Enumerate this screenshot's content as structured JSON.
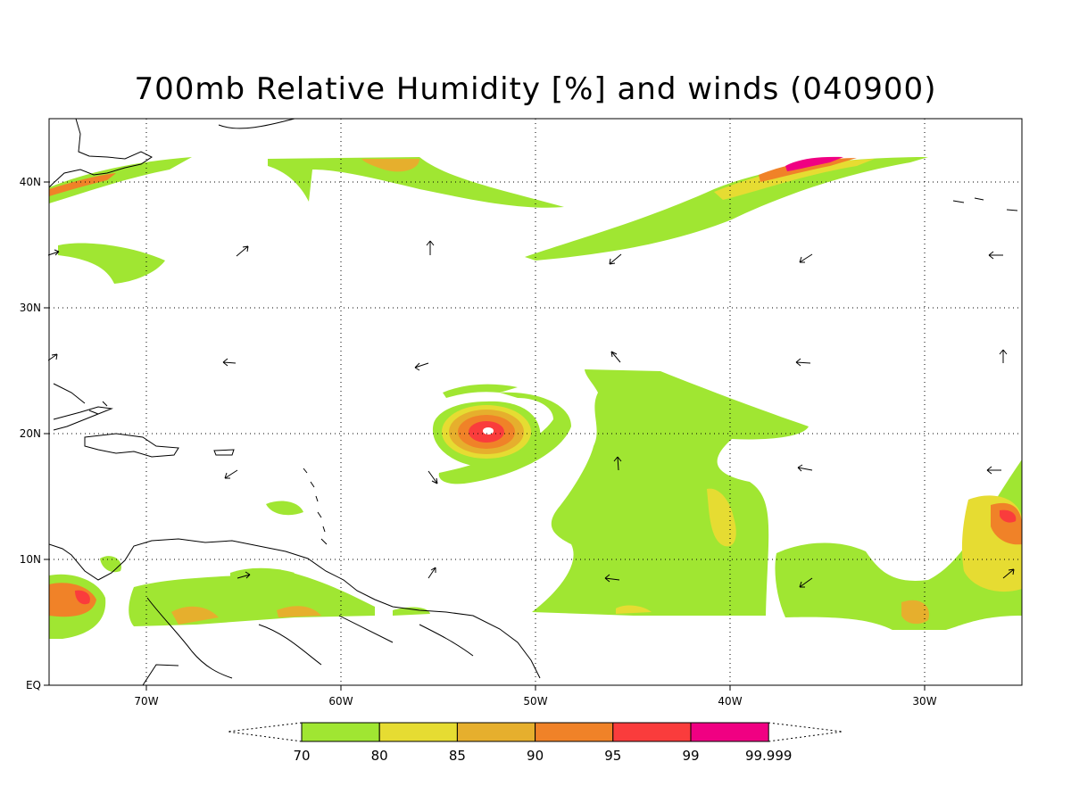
{
  "title": "700mb Relative Humidity [%] and winds (040900)",
  "axes": {
    "lat_labels": [
      "40N",
      "30N",
      "20N",
      "10N",
      "EQ"
    ],
    "lon_labels": [
      "70W",
      "60W",
      "50W",
      "40W",
      "30W"
    ],
    "lon_range": [
      -75,
      -25
    ],
    "lat_range": [
      0,
      45
    ],
    "grid": "dotted"
  },
  "colorbar": {
    "levels": [
      "70",
      "80",
      "85",
      "90",
      "95",
      "99",
      "99.999"
    ],
    "colors": [
      "#a0e632",
      "#e6dc32",
      "#e6af2d",
      "#f08228",
      "#fa3c3c",
      "#f00082"
    ]
  },
  "colors": {
    "land_outline": "#000000",
    "background": "#ffffff"
  }
}
